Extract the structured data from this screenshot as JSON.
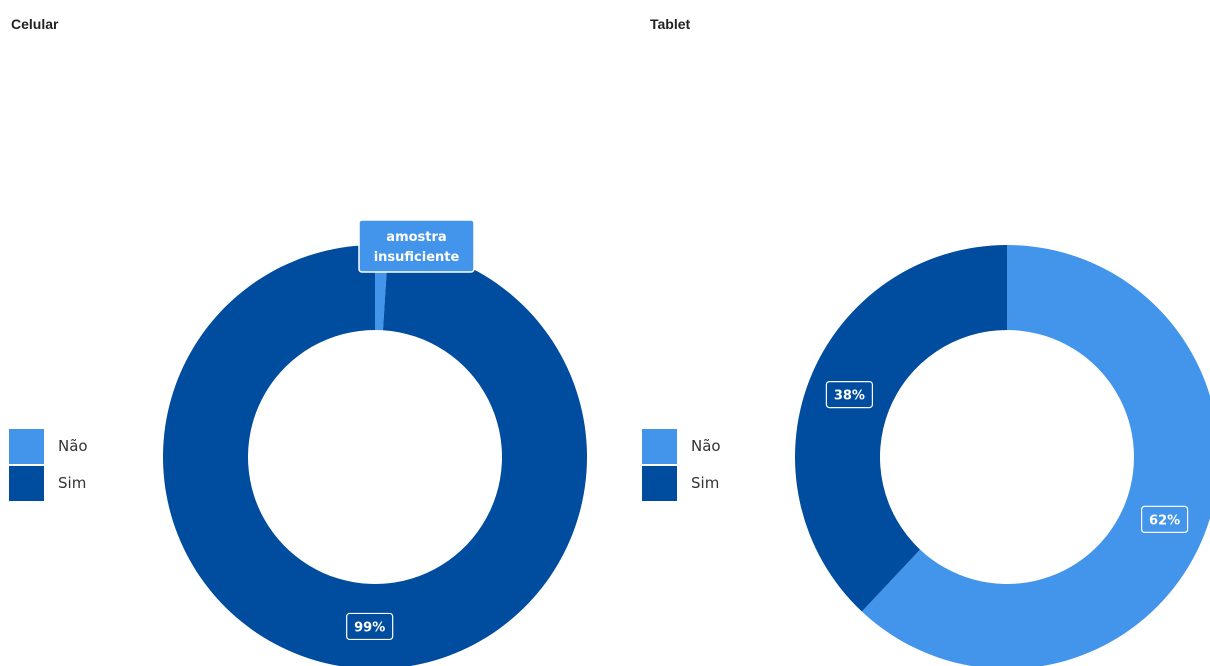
{
  "charts": [
    {
      "title": "Celular",
      "chart_data": {
        "type": "pie",
        "variant": "donut",
        "categories": [
          "Não",
          "Sim"
        ],
        "values": [
          1,
          99
        ],
        "colors": [
          "#4394eb",
          "#004c9e"
        ],
        "data_labels": [
          "amostra insuficiente",
          "99%"
        ],
        "legend": "left"
      }
    },
    {
      "title": "Tablet",
      "chart_data": {
        "type": "pie",
        "variant": "donut",
        "categories": [
          "Não",
          "Sim"
        ],
        "values": [
          62,
          38
        ],
        "colors": [
          "#4394eb",
          "#004c9e"
        ],
        "data_labels": [
          "62%",
          "38%"
        ],
        "legend": "left"
      }
    }
  ],
  "legend": {
    "items": [
      {
        "label": "Não",
        "color": "#4394eb"
      },
      {
        "label": "Sim",
        "color": "#004c9e"
      }
    ]
  },
  "low_sample_label": [
    "amostra",
    "insuficiente"
  ]
}
